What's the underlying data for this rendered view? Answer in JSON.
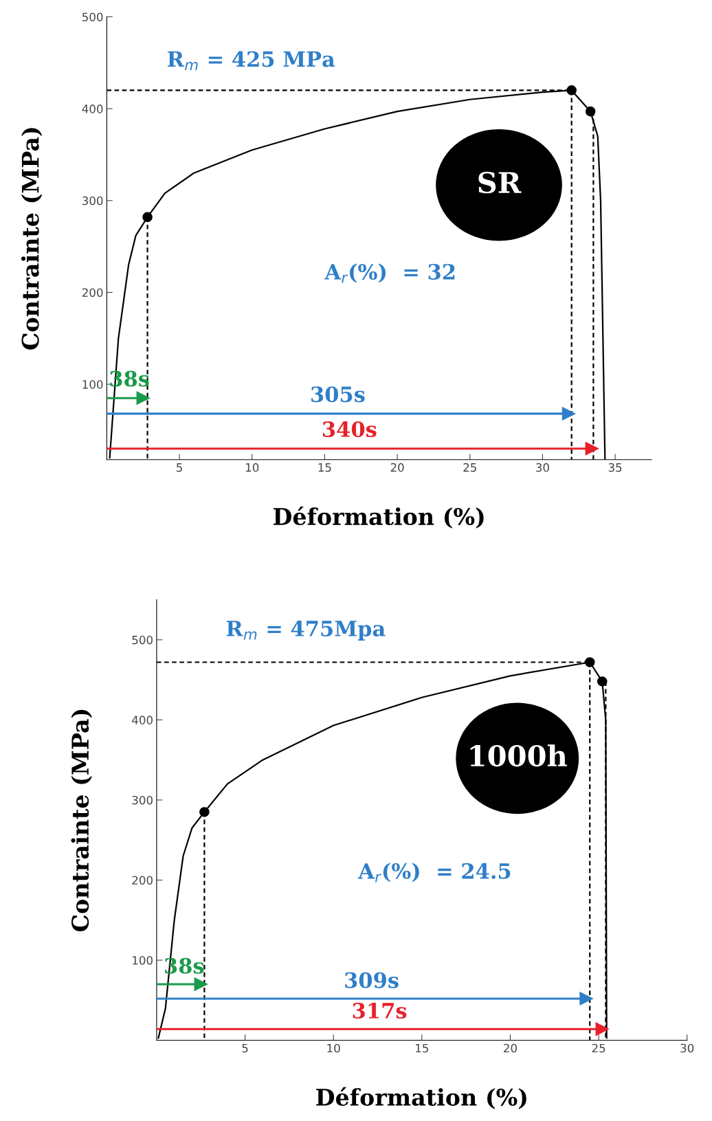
{
  "chart_data": [
    {
      "type": "line",
      "xlabel": "Déformation (%)",
      "ylabel": "Contrainte (MPa)",
      "xlim": [
        0,
        37.5
      ],
      "ylim": [
        18,
        500
      ],
      "xticks": [
        5,
        10,
        15,
        20,
        25,
        30,
        35
      ],
      "yticks": [
        100,
        200,
        300,
        400,
        500
      ],
      "grid": false,
      "legend": false,
      "annotations": [
        "R$_{m}$ = 425 MPa",
        "A$_{r}$(%)  = 32",
        "SR"
      ],
      "series": [
        {
          "color": "#000000",
          "line_style": "solid",
          "marker": "none",
          "x": [
            0.2,
            0.8,
            1.5,
            2.0,
            2.8,
            4,
            6,
            10,
            15,
            20,
            25,
            30,
            32,
            33.3,
            33.8,
            34.0,
            34.3
          ],
          "values": [
            20,
            150,
            230,
            262,
            282,
            308,
            330,
            355,
            378,
            397,
            410,
            418,
            420,
            397,
            370,
            300,
            18
          ]
        },
        {
          "type": "scatter",
          "color": "#000000",
          "marker": "circle",
          "x": [
            2.8,
            32,
            33.3
          ],
          "values": [
            282,
            420,
            397
          ]
        },
        {
          "color": "#000000",
          "line_style": "dashed",
          "marker": "none",
          "x": [
            0,
            32
          ],
          "values": [
            420,
            420
          ]
        },
        {
          "color": "#000000",
          "line_style": "dashed",
          "marker": "none",
          "x": [
            2.8,
            2.8
          ],
          "values": [
            282,
            18
          ]
        },
        {
          "color": "#000000",
          "line_style": "dashed",
          "marker": "none",
          "x": [
            32,
            32
          ],
          "values": [
            420,
            18
          ]
        },
        {
          "color": "#000000",
          "line_style": "dashed",
          "marker": "none",
          "x": [
            33.5,
            33.5
          ],
          "values": [
            397,
            18
          ]
        },
        {
          "name": "38s",
          "color": "#1a9a4a",
          "line_style": "solid",
          "marker": "triangle",
          "x": [
            0,
            2.5
          ],
          "values": [
            85,
            85
          ]
        },
        {
          "name": "305s",
          "color": "#2f7fc8",
          "line_style": "solid",
          "marker": "triangle",
          "x": [
            0,
            31.8
          ],
          "values": [
            68,
            68
          ]
        },
        {
          "name": "340s",
          "color": "#e8202a",
          "line_style": "solid",
          "marker": "triangle",
          "x": [
            0,
            33.4
          ],
          "values": [
            30,
            30
          ]
        }
      ]
    },
    {
      "type": "line",
      "xlabel": "Déformation (%)",
      "ylabel": "Contrainte (MPa)",
      "xlim": [
        0,
        30
      ],
      "ylim": [
        0,
        550
      ],
      "xticks": [
        5,
        10,
        15,
        20,
        25,
        30
      ],
      "yticks": [
        100,
        200,
        300,
        400,
        500
      ],
      "grid": false,
      "legend": false,
      "annotations": [
        "R$_{m}$ = 475Mpa",
        "A$_{r}$(%)  = 24.5",
        "1000h"
      ],
      "series": [
        {
          "color": "#000000",
          "line_style": "solid",
          "marker": "none",
          "x": [
            0.1,
            0.5,
            1.0,
            1.5,
            2.0,
            2.7,
            4,
            6,
            10,
            15,
            20,
            24.5,
            25.2,
            25.4,
            25.45
          ],
          "values": [
            3,
            40,
            150,
            230,
            265,
            285,
            320,
            350,
            393,
            428,
            455,
            472,
            448,
            400,
            3
          ]
        },
        {
          "type": "scatter",
          "color": "#000000",
          "marker": "circle",
          "x": [
            2.7,
            24.5,
            25.2
          ],
          "values": [
            285,
            472,
            448
          ]
        },
        {
          "color": "#000000",
          "line_style": "dashed",
          "marker": "none",
          "x": [
            0,
            24.5
          ],
          "values": [
            472,
            472
          ]
        },
        {
          "color": "#000000",
          "line_style": "dashed",
          "marker": "none",
          "x": [
            2.7,
            2.7
          ],
          "values": [
            285,
            0
          ]
        },
        {
          "color": "#000000",
          "line_style": "dashed",
          "marker": "none",
          "x": [
            24.5,
            24.5
          ],
          "values": [
            472,
            0
          ]
        },
        {
          "color": "#000000",
          "line_style": "dashed",
          "marker": "none",
          "x": [
            25.4,
            25.4
          ],
          "values": [
            448,
            0
          ]
        },
        {
          "name": "38s",
          "color": "#1a9a4a",
          "line_style": "solid",
          "marker": "triangle",
          "x": [
            0,
            2.5
          ],
          "values": [
            70,
            70
          ]
        },
        {
          "name": "309s",
          "color": "#2f7fc8",
          "line_style": "solid",
          "marker": "triangle",
          "x": [
            0,
            24.3
          ],
          "values": [
            52,
            52
          ]
        },
        {
          "name": "317s",
          "color": "#e8202a",
          "line_style": "solid",
          "marker": "triangle",
          "x": [
            0,
            25.2
          ],
          "values": [
            14,
            14
          ]
        }
      ]
    }
  ]
}
